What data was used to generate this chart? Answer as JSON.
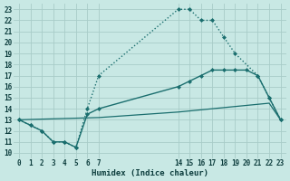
{
  "bg_color": "#c8e8e4",
  "grid_color": "#a8ccc8",
  "line_color": "#1a6e6e",
  "xlabel": "Humidex (Indice chaleur)",
  "xlim": [
    -0.5,
    23.5
  ],
  "ylim": [
    9.5,
    23.5
  ],
  "xticks": [
    0,
    1,
    2,
    3,
    4,
    5,
    6,
    7,
    14,
    15,
    16,
    17,
    18,
    19,
    20,
    21,
    22,
    23
  ],
  "yticks": [
    10,
    11,
    12,
    13,
    14,
    15,
    16,
    17,
    18,
    19,
    20,
    21,
    22,
    23
  ],
  "curve_a_x": [
    0,
    1,
    2,
    3,
    4,
    5,
    6,
    7,
    14,
    15,
    16,
    17,
    18,
    19,
    21,
    22,
    23
  ],
  "curve_a_y": [
    13,
    12.5,
    12,
    11,
    11,
    10.5,
    14,
    17,
    23,
    23,
    22,
    22,
    20.5,
    19,
    17,
    15,
    13
  ],
  "curve_b_x": [
    0,
    1,
    2,
    3,
    4,
    5,
    6,
    7,
    14,
    15,
    16,
    17,
    18,
    19,
    20,
    21,
    22,
    23
  ],
  "curve_b_y": [
    13,
    12.5,
    12,
    11,
    11,
    10.5,
    13.5,
    14,
    16,
    16.5,
    17,
    17.5,
    17.5,
    17.5,
    17.5,
    17,
    15,
    13
  ],
  "curve_c_x": [
    0,
    7,
    14,
    15,
    16,
    17,
    18,
    19,
    20,
    21,
    22,
    23
  ],
  "curve_c_y": [
    13,
    13.2,
    13.7,
    13.8,
    13.9,
    14.0,
    14.1,
    14.2,
    14.3,
    14.4,
    14.5,
    13
  ]
}
